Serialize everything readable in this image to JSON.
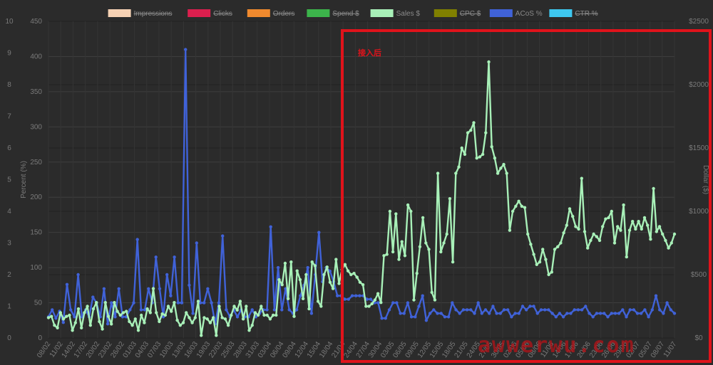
{
  "chart_data": {
    "type": "line",
    "legend": [
      {
        "name": "Impressions",
        "color": "#f6d2b4",
        "hidden": true
      },
      {
        "name": "Clicks",
        "color": "#dc1f4e",
        "hidden": true
      },
      {
        "name": "Orders",
        "color": "#f08a2e",
        "hidden": true
      },
      {
        "name": "Spend $",
        "color": "#3cb44b",
        "hidden": true
      },
      {
        "name": "Sales $",
        "color": "#a8f0b8",
        "hidden": false
      },
      {
        "name": "CPC $",
        "color": "#808000",
        "hidden": true
      },
      {
        "name": "ACoS %",
        "color": "#4062d8",
        "hidden": false
      },
      {
        "name": "CTR %",
        "color": "#3ec8f0",
        "hidden": true
      }
    ],
    "legend_placement": "top",
    "grid": true,
    "y_left_outer": {
      "ticks": [
        "0",
        "1",
        "2",
        "3",
        "4",
        "5",
        "6",
        "7",
        "8",
        "9",
        "10"
      ],
      "range": [
        0,
        10
      ]
    },
    "y_left": {
      "label": "Percent (%)",
      "range": [
        0,
        450
      ],
      "ticks": [
        "0",
        "50",
        "100",
        "150",
        "200",
        "250",
        "300",
        "350",
        "400",
        "450"
      ]
    },
    "y_right": {
      "label": "Dollar ($)",
      "range": [
        0,
        2500
      ],
      "ticks": [
        "$0",
        "$500",
        "$1000",
        "$1500",
        "$2000",
        "$2500"
      ]
    },
    "x_tick_labels": [
      "08/02",
      "11/02",
      "14/02",
      "17/02",
      "20/02",
      "23/02",
      "26/02",
      "01/03",
      "04/03",
      "07/03",
      "10/03",
      "13/03",
      "16/03",
      "19/03",
      "22/03",
      "25/03",
      "28/03",
      "31/03",
      "03/04",
      "06/04",
      "09/04",
      "12/04",
      "15/04",
      "18/04",
      "21/04",
      "24/04",
      "27/04",
      "30/04",
      "03/05",
      "06/05",
      "09/05",
      "12/05",
      "15/05",
      "18/05",
      "21/05",
      "24/05",
      "27/05",
      "30/05",
      "02/06",
      "05/06",
      "08/06",
      "11/06",
      "14/06",
      "17/06",
      "20/06",
      "23/06",
      "26/06",
      "29/06",
      "02/07",
      "05/07",
      "08/07",
      "11/07"
    ],
    "series": [
      {
        "name": "ACoS %",
        "color": "#4062d8",
        "axis": "left",
        "values": [
          30,
          40,
          28,
          38,
          22,
          76,
          40,
          30,
          90,
          30,
          40,
          30,
          58,
          50,
          30,
          70,
          20,
          50,
          30,
          70,
          30,
          30,
          40,
          50,
          140,
          40,
          40,
          70,
          50,
          115,
          70,
          30,
          90,
          60,
          115,
          50,
          50,
          410,
          75,
          35,
          135,
          50,
          50,
          70,
          50,
          20,
          50,
          145,
          40,
          30,
          40,
          30,
          40,
          30,
          30,
          40,
          30,
          35,
          40,
          40,
          158,
          40,
          100,
          40,
          70,
          40,
          35,
          40,
          60,
          75,
          100,
          35,
          90,
          150,
          80,
          100,
          95,
          80,
          60,
          60,
          55,
          55,
          60,
          60,
          60,
          60,
          55,
          55,
          50,
          50,
          28,
          28,
          40,
          50,
          50,
          35,
          35,
          50,
          30,
          30,
          45,
          60,
          25,
          35,
          40,
          35,
          35,
          30,
          30,
          50,
          40,
          35,
          40,
          40,
          40,
          35,
          50,
          35,
          40,
          35,
          45,
          35,
          35,
          40,
          40,
          30,
          35,
          35,
          45,
          40,
          45,
          45,
          35,
          40,
          40,
          40,
          35,
          30,
          35,
          30,
          35,
          35,
          40,
          40,
          40,
          45,
          35,
          30,
          35,
          35,
          35,
          30,
          35,
          35,
          35,
          40,
          30,
          40,
          40,
          35,
          35,
          40,
          30,
          40,
          60,
          40,
          35,
          50,
          40,
          35
        ]
      },
      {
        "name": "Sales $",
        "color": "#a8f0b8",
        "axis": "right",
        "values": [
          160,
          170,
          100,
          80,
          200,
          150,
          170,
          180,
          60,
          120,
          230,
          80,
          200,
          250,
          100,
          230,
          280,
          130,
          70,
          280,
          170,
          110,
          280,
          210,
          180,
          200,
          210,
          130,
          100,
          150,
          60,
          180,
          120,
          230,
          200,
          390,
          200,
          130,
          190,
          180,
          250,
          210,
          280,
          140,
          100,
          120,
          200,
          160,
          120,
          160,
          290,
          20,
          160,
          150,
          120,
          160,
          20,
          250,
          160,
          150,
          100,
          180,
          250,
          220,
          290,
          150,
          250,
          60,
          100,
          200,
          180,
          250,
          180,
          180,
          150,
          180,
          180,
          460,
          420,
          590,
          310,
          600,
          170,
          530,
          460,
          310,
          500,
          230,
          600,
          570,
          290,
          250,
          500,
          560,
          440,
          390,
          620,
          430,
          540,
          580,
          530,
          500,
          510,
          480,
          440,
          420,
          250,
          250,
          270,
          300,
          350,
          280,
          650,
          660,
          1000,
          680,
          980,
          620,
          760,
          650,
          1050,
          1000,
          300,
          510,
          720,
          950,
          750,
          700,
          360,
          300,
          1300,
          680,
          750,
          820,
          1100,
          600,
          1300,
          1350,
          1500,
          1450,
          1620,
          1640,
          1700,
          1420,
          1430,
          1450,
          1620,
          2180,
          1510,
          1420,
          1300,
          1340,
          1370,
          1300,
          850,
          1000,
          1040,
          1080,
          1040,
          1030,
          820,
          740,
          660,
          580,
          600,
          700,
          620,
          500,
          520,
          700,
          720,
          750,
          830,
          890,
          1020,
          960,
          880,
          860,
          1260,
          840,
          710,
          770,
          820,
          800,
          770,
          880,
          940,
          950,
          1000,
          750,
          880,
          850,
          1050,
          640,
          850,
          920,
          860,
          920,
          860,
          950,
          890,
          780,
          1180,
          840,
          880,
          820,
          770,
          710,
          750,
          820
        ]
      }
    ],
    "annotation": {
      "text": "接入后",
      "color": "#e0131b"
    },
    "watermark": "awwerwu.com"
  }
}
